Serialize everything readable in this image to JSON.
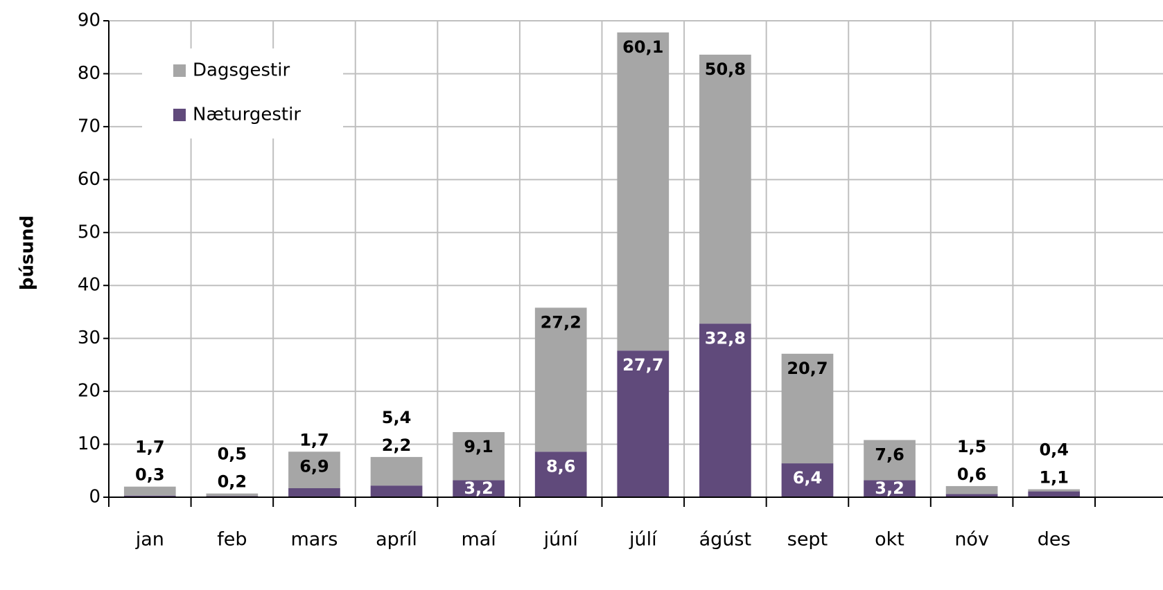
{
  "chart_data": {
    "type": "stacked-bar",
    "y_label": "þúsund",
    "categories": [
      "jan",
      "feb",
      "mars",
      "apríl",
      "maí",
      "júní",
      "júlí",
      "ágúst",
      "sept",
      "okt",
      "nóv",
      "des"
    ],
    "series": [
      {
        "name": "Dagsgestir",
        "color": "#a6a6a6",
        "values": [
          1.7,
          0.5,
          6.9,
          5.4,
          9.1,
          27.2,
          60.1,
          50.8,
          20.7,
          7.6,
          1.5,
          0.4
        ],
        "value_labels": [
          "1,7",
          "0,5",
          "6,9",
          "5,4",
          "9,1",
          "27,2",
          "60,1",
          "50,8",
          "20,7",
          "7,6",
          "1,5",
          "0,4"
        ]
      },
      {
        "name": "Næturgestir",
        "color": "#604a7b",
        "values": [
          0.3,
          0.2,
          1.7,
          2.2,
          3.2,
          8.6,
          27.7,
          32.8,
          6.4,
          3.2,
          0.6,
          1.1
        ],
        "value_labels": [
          "0,3",
          "0,2",
          "1,7",
          "2,2",
          "3,2",
          "8,6",
          "27,7",
          "32,8",
          "6,4",
          "3,2",
          "0,6",
          "1,1"
        ]
      }
    ],
    "ylim": [
      0,
      90
    ],
    "yticks": [
      0,
      10,
      20,
      30,
      40,
      50,
      60,
      70,
      80,
      90
    ],
    "grid": true,
    "legend": "top-left"
  }
}
